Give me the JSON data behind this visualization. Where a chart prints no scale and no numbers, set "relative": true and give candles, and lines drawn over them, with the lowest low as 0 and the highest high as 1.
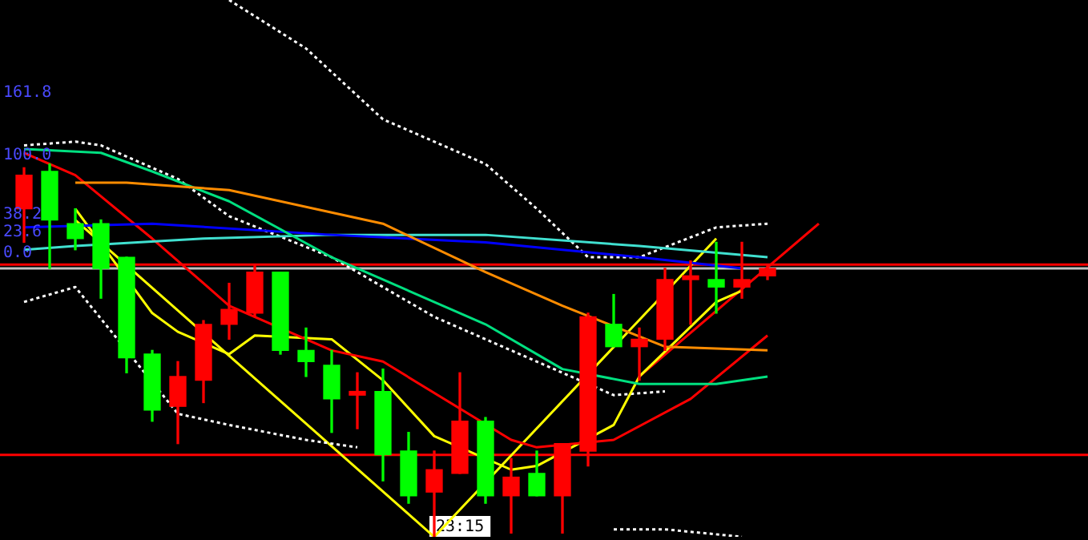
{
  "chart_data": {
    "type": "candlestick",
    "relative": true,
    "legend": false,
    "marker": "none",
    "categories": [
      null,
      null,
      null,
      null,
      null,
      null,
      null,
      null,
      null,
      null,
      null,
      null,
      null,
      null,
      null,
      null,
      null,
      null,
      null,
      null,
      null,
      null,
      null,
      null,
      null,
      null,
      null,
      null,
      null,
      null,
      null,
      null,
      null,
      null,
      null,
      null,
      null,
      null,
      null,
      null,
      null,
      null
    ],
    "ohlc": [
      [
        0.88,
        0.99,
        0.79,
        0.97
      ],
      [
        0.98,
        1.0,
        0.72,
        0.85
      ],
      [
        0.84,
        0.88,
        0.77,
        0.8
      ],
      [
        0.84,
        0.85,
        0.64,
        0.72
      ],
      [
        0.75,
        0.75,
        0.44,
        0.48
      ],
      [
        0.49,
        0.5,
        0.31,
        0.34
      ],
      [
        0.35,
        0.47,
        0.25,
        0.43
      ],
      [
        0.42,
        0.58,
        0.36,
        0.57
      ],
      [
        0.57,
        0.68,
        0.53,
        0.61
      ],
      [
        0.6,
        0.73,
        0.59,
        0.71
      ],
      [
        0.71,
        0.71,
        0.49,
        0.5
      ],
      [
        0.5,
        0.56,
        0.43,
        0.47
      ],
      [
        0.46,
        0.5,
        0.28,
        0.37
      ],
      [
        0.38,
        0.44,
        0.29,
        0.39
      ],
      [
        0.39,
        0.45,
        0.15,
        0.22
      ],
      [
        0.23,
        0.28,
        0.09,
        0.11
      ],
      [
        0.12,
        0.23,
        0.0,
        0.18
      ],
      [
        0.17,
        0.44,
        0.17,
        0.31
      ],
      [
        0.31,
        0.32,
        0.09,
        0.11
      ],
      [
        0.11,
        0.21,
        0.01,
        0.16
      ],
      [
        0.17,
        0.23,
        0.11,
        0.11
      ],
      [
        0.11,
        0.25,
        0.01,
        0.25
      ],
      [
        0.23,
        0.6,
        0.19,
        0.59
      ],
      [
        0.57,
        0.65,
        0.51,
        0.51
      ],
      [
        0.51,
        0.56,
        0.42,
        0.53
      ],
      [
        0.53,
        0.72,
        0.5,
        0.69
      ],
      [
        0.69,
        0.74,
        0.57,
        0.7
      ],
      [
        0.69,
        0.79,
        0.6,
        0.67
      ],
      [
        0.67,
        0.79,
        0.64,
        0.69
      ],
      [
        0.7,
        0.73,
        0.69,
        0.72
      ],
      null,
      null,
      null,
      null,
      null,
      null,
      null,
      null,
      null,
      null,
      null,
      null
    ],
    "colors": [
      "#ff0000",
      "#00ff00",
      "#00ff00",
      "#00ff00",
      "#00ff00",
      "#00ff00",
      "#ff0000",
      "#ff0000",
      "#ff0000",
      "#ff0000",
      "#00ff00",
      "#00ff00",
      "#00ff00",
      "#ff0000",
      "#00ff00",
      "#00ff00",
      "#ff0000",
      "#ff0000",
      "#00ff00",
      "#ff0000",
      "#00ff00",
      "#ff0000",
      "#ff0000",
      "#00ff00",
      "#ff0000",
      "#ff0000",
      "#ff0000",
      "#00ff00",
      "#ff0000",
      "#ff0000",
      null,
      null,
      null,
      null,
      null,
      null,
      null,
      null,
      null,
      null,
      null,
      null
    ],
    "series": [
      {
        "type": "line",
        "color": "#ff8c00",
        "values": [
          null,
          null,
          0.95,
          null,
          0.95,
          null,
          null,
          null,
          0.93,
          null,
          null,
          null,
          0.87,
          null,
          0.84,
          null,
          null,
          null,
          0.71,
          null,
          null,
          0.62,
          null,
          null,
          null,
          0.51,
          null,
          null,
          null,
          0.5,
          null,
          null,
          null,
          null,
          null,
          null,
          null,
          null,
          null,
          null,
          null,
          null
        ]
      },
      {
        "type": "line",
        "color": "#00e080",
        "values": [
          1.04,
          null,
          null,
          1.03,
          null,
          0.98,
          null,
          null,
          0.9,
          null,
          null,
          null,
          0.75,
          null,
          0.69,
          null,
          null,
          null,
          0.57,
          null,
          null,
          0.45,
          null,
          null,
          0.41,
          null,
          null,
          0.41,
          null,
          0.43,
          null,
          null,
          null,
          null,
          null,
          null,
          null,
          null,
          null,
          null,
          null,
          null
        ]
      },
      {
        "type": "line",
        "color": "#0000ff",
        "values": [
          0.83,
          null,
          null,
          null,
          null,
          0.84,
          null,
          null,
          null,
          null,
          null,
          null,
          0.81,
          null,
          null,
          null,
          null,
          null,
          0.79,
          null,
          null,
          null,
          null,
          null,
          0.75,
          null,
          null,
          null,
          0.72,
          null,
          null,
          null,
          null,
          null,
          null,
          null,
          null,
          null,
          null,
          null,
          null,
          null
        ]
      },
      {
        "type": "line",
        "color": "#40e0d0",
        "values": [
          0.77,
          null,
          0.78,
          null,
          null,
          null,
          null,
          0.8,
          null,
          null,
          null,
          null,
          0.81,
          null,
          null,
          null,
          null,
          null,
          0.81,
          null,
          null,
          null,
          null,
          null,
          0.78,
          null,
          null,
          null,
          null,
          0.75,
          null,
          null,
          null,
          null,
          null,
          null,
          null,
          null,
          null,
          null,
          null,
          null
        ]
      },
      {
        "type": "line",
        "color": "#ff0000",
        "values": [
          1.03,
          null,
          0.97,
          null,
          null,
          0.8,
          null,
          null,
          0.62,
          null,
          null,
          null,
          0.5,
          null,
          0.47,
          null,
          null,
          null,
          null,
          0.26,
          0.24,
          null,
          null,
          0.26,
          null,
          null,
          0.37,
          null,
          null,
          0.54,
          null,
          null,
          null,
          null,
          null,
          null,
          null,
          null,
          null,
          null,
          null,
          null
        ]
      },
      {
        "type": "line",
        "color": "#ffff00",
        "values": [
          null,
          null,
          0.88,
          null,
          null,
          0.6,
          0.55,
          null,
          0.49,
          0.54,
          null,
          null,
          0.53,
          null,
          0.42,
          null,
          0.27,
          null,
          null,
          0.18,
          0.19,
          null,
          null,
          0.3,
          0.43,
          null,
          null,
          0.63,
          0.66,
          null,
          null,
          null,
          null,
          null,
          null,
          null,
          null,
          null,
          null,
          null,
          null,
          null
        ]
      },
      {
        "type": "line",
        "color": "#ffffff",
        "line_style": "dashed",
        "values": [
          null,
          null,
          null,
          null,
          null,
          null,
          null,
          null,
          1.44,
          null,
          null,
          1.31,
          null,
          null,
          1.12,
          null,
          null,
          null,
          1.0,
          null,
          0.88,
          null,
          0.75,
          null,
          0.75,
          null,
          null,
          0.83,
          null,
          0.84,
          null,
          null,
          null,
          null,
          null,
          null,
          null,
          null,
          null,
          null,
          null,
          null
        ]
      },
      {
        "type": "line",
        "color": "#ffffff",
        "line_style": "dashed",
        "values": [
          1.05,
          null,
          1.06,
          1.05,
          null,
          null,
          0.96,
          null,
          0.86,
          null,
          null,
          null,
          0.75,
          null,
          0.67,
          null,
          0.59,
          null,
          null,
          0.5,
          null,
          null,
          null,
          0.38,
          null,
          0.39,
          null,
          null,
          null,
          null,
          null,
          null,
          null,
          null,
          null,
          null,
          null,
          null,
          null,
          null,
          null,
          null
        ]
      },
      {
        "type": "line",
        "color": "#ffffff",
        "line_style": "dashed",
        "values": [
          0.63,
          null,
          0.67,
          null,
          null,
          null,
          0.33,
          null,
          0.3,
          null,
          null,
          0.26,
          null,
          0.24,
          null,
          null,
          null,
          null,
          null,
          null,
          null,
          null,
          null,
          null,
          null,
          null,
          null,
          null,
          null,
          null,
          null,
          null,
          null,
          null,
          null,
          null,
          null,
          null,
          null,
          null,
          null,
          null
        ]
      },
      {
        "type": "line",
        "color": "#ffffff",
        "line_style": "dashed",
        "values": [
          null,
          null,
          null,
          null,
          null,
          null,
          null,
          null,
          null,
          null,
          null,
          null,
          null,
          null,
          null,
          null,
          null,
          null,
          null,
          null,
          null,
          null,
          null,
          0.02,
          null,
          0.02,
          null,
          null,
          0.0,
          null,
          null,
          null,
          null,
          null,
          null,
          null,
          null,
          null,
          null,
          null,
          null,
          null
        ]
      },
      {
        "type": "line",
        "color": "#ffff00",
        "values": [
          null,
          null,
          0.85,
          null,
          null,
          null,
          null,
          null,
          null,
          null,
          null,
          null,
          null,
          null,
          null,
          null,
          0.0,
          null,
          null,
          null,
          null,
          null,
          null,
          null,
          null,
          null,
          null,
          0.8,
          null,
          null,
          null,
          null,
          null,
          null,
          null,
          null,
          null,
          null,
          null,
          null,
          null,
          null
        ]
      },
      {
        "type": "line",
        "color": "#ff0000",
        "values": [
          null,
          null,
          null,
          null,
          null,
          null,
          null,
          null,
          null,
          null,
          null,
          null,
          null,
          null,
          null,
          null,
          null,
          null,
          null,
          null,
          null,
          null,
          null,
          null,
          0.43,
          null,
          null,
          null,
          null,
          null,
          null,
          0.84,
          null,
          null,
          null,
          null,
          null,
          null,
          null,
          null,
          null,
          null
        ]
      }
    ],
    "ref_lines": [
      {
        "axis": "y",
        "value": 0.73,
        "color": "#ff0000"
      },
      {
        "axis": "y",
        "value": 0.72,
        "color": "#c0c0c0"
      },
      {
        "axis": "y",
        "value": 0.22,
        "color": "#ff0000"
      }
    ],
    "annotations": [
      "161.8",
      "100.0",
      "38.2",
      "23.6",
      "0.0",
      "23:15"
    ]
  }
}
